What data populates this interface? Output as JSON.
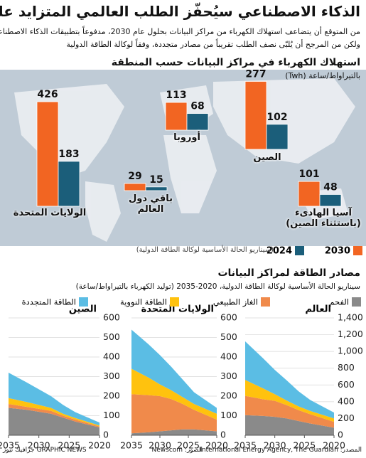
{
  "header": {
    "title": "الذكاء الاصطناعي سيُحفّز الطلب العالمي المتزايد على الطاقة",
    "subtitle": [
      "من المتوقع أن يتضاعف استهلاك الكهرباء من مراكز البيانات بحلول عام 2030، مدفوعاً بتطبيقات الذكاء الاصطناعي،",
      "ولكن من المرجح أن يُلبّى نصف الطلب تقريباً من مصادر متجددة، وفقاً لوكالة الطاقة الدولية"
    ]
  },
  "chart_data": [
    {
      "type": "bar",
      "title": "استهلاك الكهرباء في مراكز البيانات حسب المنطقة",
      "unit": "بالتيراواط/ساعة (Twh)",
      "categories": [
        "الولايات المتحدة",
        "أوروبا",
        "باقي دول العالم",
        "الصين",
        "آسيا الهادىء (باستثناء الصين)"
      ],
      "series": [
        {
          "name": "2030",
          "color": "#f26522",
          "values": [
            426,
            113,
            29,
            277,
            101
          ]
        },
        {
          "name": "2024",
          "color": "#1b5e7a",
          "values": [
            183,
            68,
            15,
            102,
            48
          ]
        }
      ],
      "legend_note": "(سيناريو الحالة الأساسية لوكالة الطاقة الدولية)"
    },
    {
      "type": "area",
      "title": "العالم",
      "x": [
        2020,
        2024,
        2026,
        2028,
        2030,
        2032,
        2035
      ],
      "xlim": [
        2035,
        2020
      ],
      "xticks": [
        2020,
        2025,
        2030,
        2035
      ],
      "ylim": [
        0,
        1400
      ],
      "yticks": [
        0,
        200,
        400,
        600,
        800,
        {
          "value": 1000,
          "label": "1,000"
        },
        {
          "value": 1200,
          "label": "1,200"
        },
        {
          "value": 1400,
          "label": "1,400"
        }
      ],
      "grid": true,
      "series": [
        {
          "name": "الفحم",
          "color": "#8a8a8a",
          "values": [
            90,
            140,
            170,
            200,
            220,
            230,
            240
          ]
        },
        {
          "name": "الغاز الطبيعي",
          "color": "#f08a4b",
          "values": [
            70,
            110,
            130,
            160,
            190,
            200,
            230
          ]
        },
        {
          "name": "الطاقة النووية",
          "color": "#ffc20e",
          "values": [
            40,
            40,
            45,
            55,
            80,
            130,
            190
          ]
        },
        {
          "name": "الطاقة المتجددة",
          "color": "#5bbde4",
          "values": [
            70,
            130,
            180,
            240,
            290,
            360,
            460
          ]
        }
      ]
    },
    {
      "type": "area",
      "title": "الولايات المتحدة",
      "x": [
        2020,
        2024,
        2026,
        2028,
        2030,
        2032,
        2035
      ],
      "xlim": [
        2035,
        2020
      ],
      "xticks": [
        2020,
        2025,
        2030,
        2035
      ],
      "ylim": [
        0,
        600
      ],
      "yticks": [
        0,
        100,
        200,
        300,
        400,
        500,
        600
      ],
      "grid": true,
      "series": [
        {
          "values": [
            20,
            30,
            30,
            25,
            20,
            15,
            10
          ]
        },
        {
          "values": [
            60,
            100,
            130,
            160,
            180,
            190,
            200
          ]
        },
        {
          "values": [
            30,
            30,
            35,
            45,
            60,
            90,
            130
          ]
        },
        {
          "values": [
            30,
            60,
            90,
            120,
            150,
            170,
            200
          ]
        }
      ]
    },
    {
      "type": "area",
      "title": "الصين",
      "x": [
        2020,
        2024,
        2026,
        2028,
        2030,
        2032,
        2035
      ],
      "xlim": [
        2035,
        2020
      ],
      "xticks": [
        2020,
        2025,
        2030,
        2035
      ],
      "ylim": [
        0,
        600
      ],
      "yticks": [
        0,
        100,
        200,
        300,
        400,
        500,
        600
      ],
      "grid": true,
      "series": [
        {
          "values": [
            40,
            70,
            90,
            110,
            120,
            130,
            140
          ]
        },
        {
          "values": [
            5,
            10,
            10,
            15,
            15,
            15,
            20
          ]
        },
        {
          "values": [
            5,
            8,
            10,
            15,
            20,
            25,
            30
          ]
        },
        {
          "values": [
            15,
            30,
            45,
            60,
            80,
            100,
            130
          ]
        }
      ]
    }
  ],
  "sources_section": {
    "title": "مصادر الطاقة لمراكز البيانات",
    "subtitle": "سيناريو الحالة الأساسية لوكالة الطاقة الدولية، 2020-2035 (توليد الكهرباء بالتيراواط/ساعة)"
  },
  "footer": {
    "source": "المصدر: International Energy Agency, The Guardian",
    "photos": "الصور: Newscom",
    "brand": "GRAPHIC NEWS جرافيك نيوز"
  }
}
